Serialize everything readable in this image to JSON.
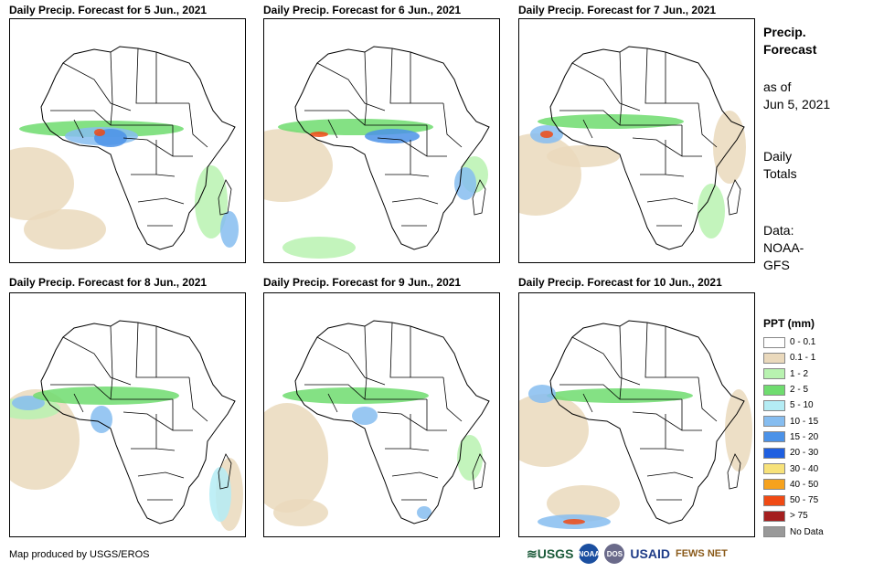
{
  "panels": [
    {
      "title": "Daily Precip. Forecast for 5 Jun., 2021",
      "day": 5
    },
    {
      "title": "Daily Precip. Forecast for 6 Jun., 2021",
      "day": 6
    },
    {
      "title": "Daily Precip. Forecast for 7 Jun., 2021",
      "day": 7
    },
    {
      "title": "Daily Precip. Forecast for 8 Jun., 2021",
      "day": 8
    },
    {
      "title": "Daily Precip. Forecast for 9 Jun., 2021",
      "day": 9
    },
    {
      "title": "Daily Precip. Forecast for 10 Jun., 2021",
      "day": 10
    }
  ],
  "side": {
    "title_line1": "Precip.",
    "title_line2": "Forecast",
    "asof_line1": "as of",
    "asof_line2": "Jun 5, 2021",
    "totals_line1": "Daily",
    "totals_line2": "Totals",
    "data_line1": "Data:",
    "data_line2": "NOAA-",
    "data_line3": "GFS"
  },
  "legend": {
    "title": "PPT (mm)",
    "items": [
      {
        "label": "0 - 0.1",
        "color": "#ffffff"
      },
      {
        "label": "0.1 - 1",
        "color": "#ead9bc"
      },
      {
        "label": "1 - 2",
        "color": "#b8f2b0"
      },
      {
        "label": "2 - 5",
        "color": "#6fdc6f"
      },
      {
        "label": "5 - 10",
        "color": "#b4ecf4"
      },
      {
        "label": "10 - 15",
        "color": "#86bdf0"
      },
      {
        "label": "15 - 20",
        "color": "#4b92e8"
      },
      {
        "label": "20 - 30",
        "color": "#1f5fe0"
      },
      {
        "label": "30 - 40",
        "color": "#f7e27a"
      },
      {
        "label": "40 - 50",
        "color": "#f6a21e"
      },
      {
        "label": "50 - 75",
        "color": "#f04a14"
      },
      {
        "label": "> 75",
        "color": "#a41f1f"
      },
      {
        "label": "No Data",
        "color": "#999999"
      }
    ]
  },
  "footer": {
    "credit": "Map produced by USGS/EROS",
    "logo_usgs": "USGS",
    "logo_noaa": "NOAA",
    "logo_dos": "DOS",
    "logo_usaid": "USAID",
    "logo_fews": "FEWS NET"
  }
}
